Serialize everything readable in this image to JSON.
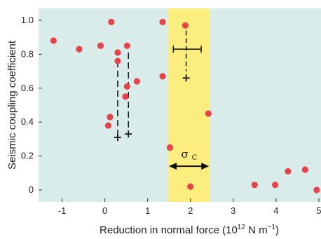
{
  "chart_data": {
    "type": "scatter",
    "title": "",
    "xlabel": "Reduction in normal force (10",
    "xlabel_exp": "12",
    "xlabel_unit": " N m",
    "xlabel_unit_exp": "−1",
    "xlabel_close": ")",
    "ylabel": "Seismic coupling coefficient",
    "xlim": [
      -1.55,
      5.1
    ],
    "ylim": [
      -0.07,
      1.07
    ],
    "xticks": [
      -1,
      0,
      1,
      2,
      3,
      4,
      5
    ],
    "yticks": [
      0,
      0.2,
      0.4,
      0.6,
      0.8,
      1.0
    ],
    "ytick_labels": [
      "0",
      "0.2",
      "0.4",
      "0.6",
      "0.8",
      "1.0"
    ],
    "grid": false,
    "points": [
      {
        "x": -1.2,
        "y": 0.88
      },
      {
        "x": -0.6,
        "y": 0.83
      },
      {
        "x": -0.1,
        "y": 0.85
      },
      {
        "x": 0.15,
        "y": 0.99
      },
      {
        "x": 0.3,
        "y": 0.81
      },
      {
        "x": 0.3,
        "y": 0.76
      },
      {
        "x": 0.52,
        "y": 0.85
      },
      {
        "x": 0.52,
        "y": 0.61
      },
      {
        "x": 0.48,
        "y": 0.55
      },
      {
        "x": 0.75,
        "y": 0.64
      },
      {
        "x": 0.12,
        "y": 0.43
      },
      {
        "x": 0.08,
        "y": 0.38
      },
      {
        "x": 1.35,
        "y": 0.99
      },
      {
        "x": 1.35,
        "y": 0.67
      },
      {
        "x": 1.88,
        "y": 0.97
      },
      {
        "x": 2.42,
        "y": 0.45
      },
      {
        "x": 1.52,
        "y": 0.25
      },
      {
        "x": 2.0,
        "y": 0.02
      },
      {
        "x": 3.5,
        "y": 0.03
      },
      {
        "x": 3.98,
        "y": 0.03
      },
      {
        "x": 4.28,
        "y": 0.11
      },
      {
        "x": 4.68,
        "y": 0.12
      },
      {
        "x": 4.95,
        "y": 0.0
      }
    ],
    "dashed_ranges": [
      {
        "x": 0.3,
        "y_top": 0.76,
        "y_bottom": 0.31
      },
      {
        "x": 0.55,
        "y_top": 0.81,
        "y_bottom": 0.33
      }
    ],
    "plus_markers": [
      {
        "x": 0.3,
        "y": 0.31
      },
      {
        "x": 0.55,
        "y": 0.33
      },
      {
        "x": 1.9,
        "y": 0.66
      }
    ],
    "error_cross": {
      "x": 1.9,
      "y": 0.83,
      "x_err": [
        1.6,
        2.25
      ],
      "y_range": [
        0.7,
        0.94
      ]
    },
    "highlight_band": {
      "x0": 1.48,
      "x1": 2.45,
      "label": "σ",
      "label_sub": "C",
      "arrow_y": 0.14
    },
    "colors": {
      "background": "#d9ecea",
      "band": "#fbee7f",
      "point": "#e5434a",
      "ink": "#111111"
    }
  }
}
